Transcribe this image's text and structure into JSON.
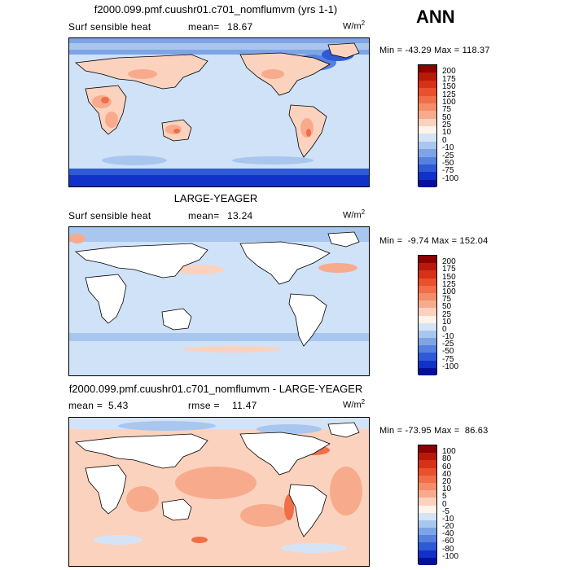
{
  "header": {
    "ann_label": "ANN"
  },
  "panels": [
    {
      "title": "f2000.099.pmf.cuushr01.c701_nomflumvm (yrs 1-1)",
      "left_label": "Surf sensible heat",
      "mean_label": "mean=",
      "mean_value": "18.67",
      "rmse_label": "",
      "rmse_value": "",
      "units": "W/m",
      "units_exp": "2",
      "minmax": "Min = -43.29 Max = 118.37",
      "land_style": "colored",
      "colorbar_labels": [
        "200",
        "175",
        "150",
        "125",
        "100",
        "75",
        "50",
        "25",
        "10",
        "0",
        "-10",
        "-25",
        "-50",
        "-75",
        "-100"
      ],
      "colorbar_colors": [
        "#8b0000",
        "#b81a0a",
        "#d6321a",
        "#e8502e",
        "#f06e48",
        "#f48d69",
        "#f7ab8c",
        "#fbd2bd",
        "#fff3ea",
        "#d4e4f6",
        "#a9c6ee",
        "#7ea4e6",
        "#5580dd",
        "#2f5ad5",
        "#1032c9",
        "#04109c"
      ]
    },
    {
      "title": "LARGE-YEAGER",
      "left_label": "Surf sensible heat",
      "mean_label": "mean=",
      "mean_value": "13.24",
      "rmse_label": "",
      "rmse_value": "",
      "units": "W/m",
      "units_exp": "2",
      "minmax": "Min =  -9.74 Max = 152.04",
      "land_style": "white",
      "colorbar_labels": [
        "200",
        "175",
        "150",
        "125",
        "100",
        "75",
        "50",
        "25",
        "10",
        "0",
        "-10",
        "-25",
        "-50",
        "-75",
        "-100"
      ],
      "colorbar_colors": [
        "#8b0000",
        "#b81a0a",
        "#d6321a",
        "#e8502e",
        "#f06e48",
        "#f48d69",
        "#f7ab8c",
        "#fbd2bd",
        "#fff3ea",
        "#d4e4f6",
        "#a9c6ee",
        "#7ea4e6",
        "#5580dd",
        "#2f5ad5",
        "#1032c9",
        "#04109c"
      ]
    },
    {
      "title": "f2000.099.pmf.cuushr01.c701_nomflumvm - LARGE-YEAGER",
      "left_label": "",
      "mean_label": "mean =",
      "mean_value": "5.43",
      "rmse_label": "rmse =",
      "rmse_value": "11.47",
      "units": "W/m",
      "units_exp": "2",
      "minmax": "Min = -73.95 Max =  86.63",
      "land_style": "white",
      "colorbar_labels": [
        "100",
        "80",
        "60",
        "40",
        "20",
        "10",
        "5",
        "0",
        "-5",
        "-10",
        "-20",
        "-40",
        "-60",
        "-80",
        "-100"
      ],
      "colorbar_colors": [
        "#8b0000",
        "#b81a0a",
        "#d6321a",
        "#e8502e",
        "#f06e48",
        "#f48d69",
        "#f7ab8c",
        "#fbd2bd",
        "#fff3ea",
        "#d4e4f6",
        "#a9c6ee",
        "#7ea4e6",
        "#5580dd",
        "#2f5ad5",
        "#1032c9",
        "#04109c"
      ]
    }
  ]
}
